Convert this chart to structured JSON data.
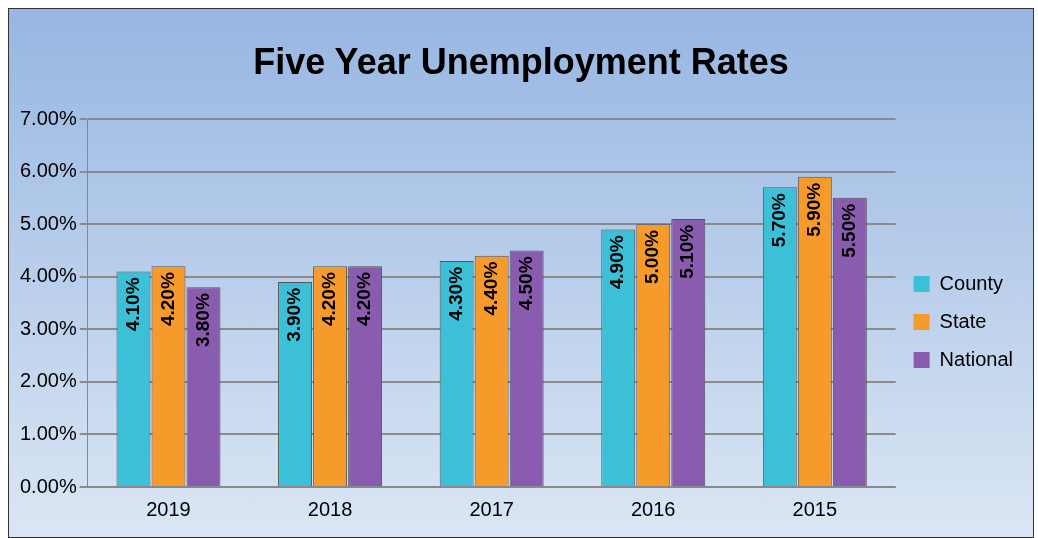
{
  "chart_data": {
    "type": "bar",
    "title": "Five Year Unemployment Rates",
    "categories": [
      "2019",
      "2018",
      "2017",
      "2016",
      "2015"
    ],
    "series": [
      {
        "name": "County",
        "color": "#3cc0d8",
        "values": [
          4.1,
          3.9,
          4.3,
          4.9,
          5.7
        ],
        "value_labels": [
          "4.10%",
          "3.90%",
          "4.30%",
          "4.90%",
          "5.70%"
        ]
      },
      {
        "name": "State",
        "color": "#f79a2c",
        "values": [
          4.2,
          4.2,
          4.4,
          5.0,
          5.9
        ],
        "value_labels": [
          "4.20%",
          "4.20%",
          "4.40%",
          "5.00%",
          "5.90%"
        ]
      },
      {
        "name": "National",
        "color": "#8a5cb0",
        "values": [
          3.8,
          4.2,
          4.5,
          5.1,
          5.5
        ],
        "value_labels": [
          "3.80%",
          "4.20%",
          "4.50%",
          "5.10%",
          "5.50%"
        ]
      }
    ],
    "ylim": [
      0,
      7
    ],
    "yticks": [
      {
        "value": 0,
        "label": "0.00%"
      },
      {
        "value": 1,
        "label": "1.00%"
      },
      {
        "value": 2,
        "label": "2.00%"
      },
      {
        "value": 3,
        "label": "3.00%"
      },
      {
        "value": 4,
        "label": "4.00%"
      },
      {
        "value": 5,
        "label": "5.00%"
      },
      {
        "value": 6,
        "label": "6.00%"
      },
      {
        "value": 7,
        "label": "7.00%"
      }
    ],
    "grid": "y",
    "legend": "right"
  }
}
